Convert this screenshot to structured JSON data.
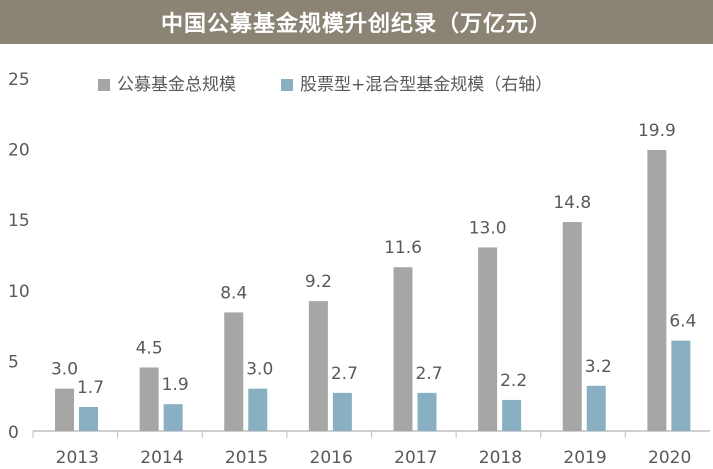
{
  "title": "中国公募基金规模升创纪录（万亿元）",
  "colors": {
    "title_bg": "#8b8374",
    "series1": "#a6a6a6",
    "series2": "#89b0c2",
    "axis": "#bfbfbf",
    "text": "#595959"
  },
  "chart_data": {
    "type": "bar",
    "title": "中国公募基金规模升创纪录（万亿元）",
    "categories": [
      "2013",
      "2014",
      "2015",
      "2016",
      "2017",
      "2018",
      "2019",
      "2020"
    ],
    "series": [
      {
        "name": "公募基金总规模",
        "values": [
          3.0,
          4.5,
          8.4,
          9.2,
          11.6,
          13.0,
          14.8,
          19.9
        ]
      },
      {
        "name": "股票型+混合型基金规模（右轴）",
        "values": [
          1.7,
          1.9,
          3.0,
          2.7,
          2.7,
          2.2,
          3.2,
          6.4
        ]
      }
    ],
    "yticks": [
      0,
      5,
      10,
      15,
      20,
      25
    ],
    "ylim": [
      0,
      25
    ],
    "xlabel": "",
    "ylabel": "",
    "legend": "top-center",
    "grid": false
  }
}
